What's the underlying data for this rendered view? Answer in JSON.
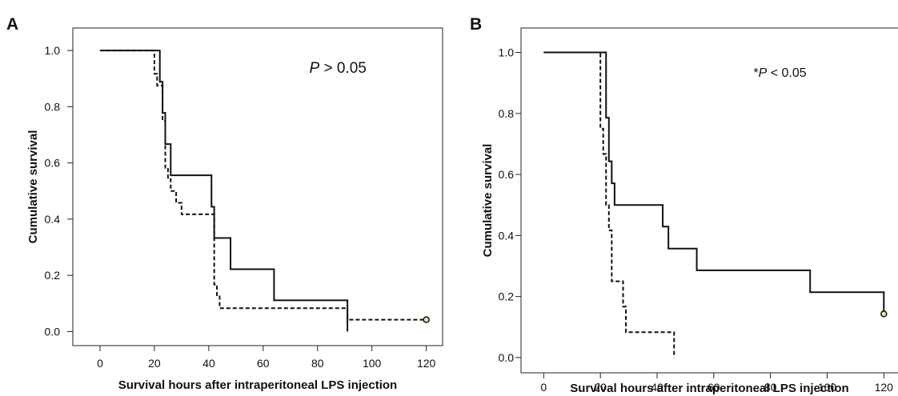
{
  "chart_data": [
    {
      "panel": "A",
      "type": "line",
      "step": true,
      "xlabel": "Survival hours after intraperitoneal LPS injection",
      "ylabel": "Cumulative survival",
      "xlim": [
        -10,
        126
      ],
      "ylim": [
        -0.05,
        1.08
      ],
      "x_ticks": [
        0,
        20,
        40,
        60,
        80,
        100,
        120
      ],
      "x_tick_labels": [
        "0",
        "20",
        "40",
        "60",
        "80",
        "100",
        "120"
      ],
      "y_ticks": [
        0.0,
        0.2,
        0.4,
        0.6,
        0.8,
        1.0
      ],
      "y_tick_labels": [
        "0.0",
        "0.2",
        "0.4",
        "0.6",
        "0.8",
        "1.0"
      ],
      "annotation": {
        "italic": "P",
        "rest": " > 0.05",
        "x": 77,
        "y": 0.92
      },
      "box": "full",
      "series": [
        {
          "style": "solid",
          "x": [
            0,
            22,
            23,
            24,
            26,
            41,
            42,
            48,
            64,
            91
          ],
          "y": [
            1.0,
            0.889,
            0.778,
            0.667,
            0.556,
            0.444,
            0.333,
            0.222,
            0.111,
            0.0
          ]
        },
        {
          "style": "dashed",
          "x": [
            0,
            20,
            21,
            23,
            24,
            25,
            26,
            28,
            30,
            42,
            43,
            44,
            91,
            120
          ],
          "y": [
            1.0,
            0.917,
            0.875,
            0.75,
            0.583,
            0.542,
            0.5,
            0.458,
            0.417,
            0.167,
            0.125,
            0.083,
            0.042,
            0.042
          ],
          "censored": [
            {
              "x": 120,
              "y": 0.042
            }
          ]
        }
      ]
    },
    {
      "panel": "B",
      "type": "line",
      "step": true,
      "xlabel": "Survival hours after intraperitoneal LPS injection",
      "ylabel": "Cumulative survival",
      "xlim": [
        -8,
        125
      ],
      "ylim": [
        -0.05,
        1.08
      ],
      "x_ticks": [
        0,
        20,
        40,
        60,
        80,
        100,
        120
      ],
      "x_tick_labels": [
        "0",
        "20",
        "40",
        "60",
        "80",
        "100",
        "120"
      ],
      "y_ticks": [
        0.0,
        0.2,
        0.4,
        0.6,
        0.8,
        1.0
      ],
      "y_tick_labels": [
        "0.0",
        "0.2",
        "0.4",
        "0.6",
        "0.8",
        "1.0"
      ],
      "annotation": {
        "prefix": "*",
        "italic": "P",
        "rest": " < 0.05",
        "x": 74,
        "y": 0.92
      },
      "box": "top-left-bottom",
      "series": [
        {
          "style": "solid",
          "x": [
            0,
            22,
            23,
            24,
            25,
            42,
            44,
            54,
            94,
            120
          ],
          "y": [
            1.0,
            0.786,
            0.643,
            0.571,
            0.5,
            0.429,
            0.357,
            0.286,
            0.214,
            0.143
          ],
          "censored": [
            {
              "x": 120,
              "y": 0.143
            }
          ]
        },
        {
          "style": "dashed",
          "x": [
            0,
            20,
            21,
            22,
            23,
            24,
            26,
            28,
            29,
            46
          ],
          "y": [
            1.0,
            0.75,
            0.667,
            0.5,
            0.417,
            0.25,
            0.25,
            0.167,
            0.083,
            0.0
          ]
        }
      ]
    }
  ]
}
